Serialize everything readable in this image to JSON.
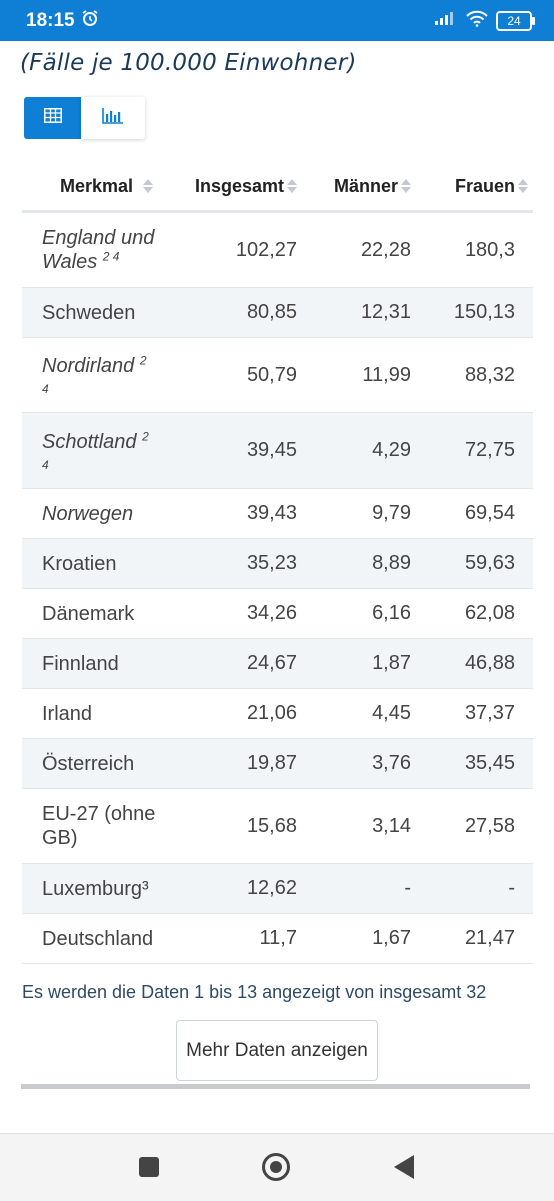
{
  "status": {
    "time": "18:15",
    "battery": "24"
  },
  "subtitle": "(Fälle je 100.000 Einwohner)",
  "toggle": {
    "table_icon": "table-icon",
    "chart_icon": "bar-chart-icon",
    "active_color": "#0f7fd6"
  },
  "table": {
    "headers": [
      "Merkmal",
      "Insgesamt",
      "Männer",
      "Frauen"
    ],
    "rows": [
      {
        "name": "England und Wales",
        "note": "2 4",
        "italic": true,
        "insgesamt": "102,27",
        "maenner": "22,28",
        "frauen": "180,3"
      },
      {
        "name": "Schweden",
        "note": "",
        "italic": false,
        "insgesamt": "80,85",
        "maenner": "12,31",
        "frauen": "150,13"
      },
      {
        "name": "Nordirland",
        "note": "2",
        "note2": "4",
        "italic": true,
        "insgesamt": "50,79",
        "maenner": "11,99",
        "frauen": "88,32"
      },
      {
        "name": "Schottland",
        "note": "2",
        "note2": "4",
        "italic": true,
        "insgesamt": "39,45",
        "maenner": "4,29",
        "frauen": "72,75"
      },
      {
        "name": "Norwegen",
        "note": "",
        "italic": true,
        "insgesamt": "39,43",
        "maenner": "9,79",
        "frauen": "69,54"
      },
      {
        "name": "Kroatien",
        "note": "",
        "italic": false,
        "insgesamt": "35,23",
        "maenner": "8,89",
        "frauen": "59,63"
      },
      {
        "name": "Dänemark",
        "note": "",
        "italic": false,
        "insgesamt": "34,26",
        "maenner": "6,16",
        "frauen": "62,08"
      },
      {
        "name": "Finnland",
        "note": "",
        "italic": false,
        "insgesamt": "24,67",
        "maenner": "1,87",
        "frauen": "46,88"
      },
      {
        "name": "Irland",
        "note": "",
        "italic": false,
        "insgesamt": "21,06",
        "maenner": "4,45",
        "frauen": "37,37"
      },
      {
        "name": "Österreich",
        "note": "",
        "italic": false,
        "insgesamt": "19,87",
        "maenner": "3,76",
        "frauen": "35,45"
      },
      {
        "name": "EU-27 (ohne GB)",
        "note": "",
        "italic": false,
        "insgesamt": "15,68",
        "maenner": "3,14",
        "frauen": "27,58"
      },
      {
        "name": "Luxemburg³",
        "note": "",
        "italic": false,
        "insgesamt": "12,62",
        "maenner": "-",
        "frauen": "-"
      },
      {
        "name": "Deutschland",
        "note": "",
        "italic": false,
        "insgesamt": "11,7",
        "maenner": "1,67",
        "frauen": "21,47"
      }
    ]
  },
  "info_text": "Es werden die Daten 1 bis 13 angezeigt von insgesamt 32",
  "more_button": "Mehr Daten anzeigen"
}
